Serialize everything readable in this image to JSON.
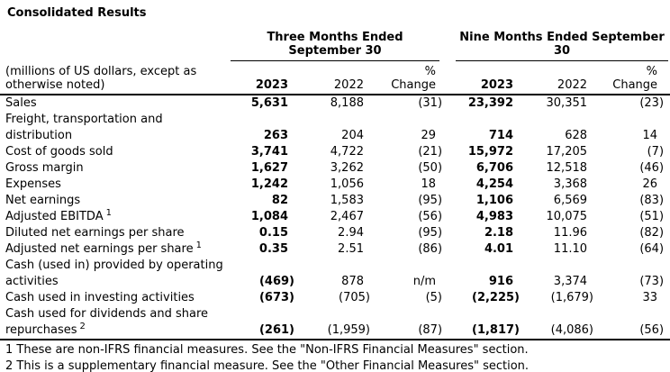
{
  "title": "Consolidated Results",
  "colors": {
    "text": "#000000",
    "background": "#ffffff",
    "rule": "#000000"
  },
  "table": {
    "unit_note": "(millions of US dollars, except as\notherwise noted)",
    "groups": [
      {
        "label": "Three Months Ended\nSeptember 30"
      },
      {
        "label": "Nine Months Ended September\n30"
      }
    ],
    "columns": {
      "y2023": "2023",
      "y2022": "2022",
      "pct_change": "%\nChange"
    },
    "rows": [
      {
        "label": "Sales",
        "sup": "",
        "values": [
          "5,631",
          "8,188",
          "(31)",
          "23,392",
          "30,351",
          "(23)"
        ]
      },
      {
        "label": "Freight, transportation and\ndistribution",
        "sup": "",
        "values": [
          "263",
          "204",
          "29",
          "714",
          "628",
          "14"
        ]
      },
      {
        "label": "Cost of goods sold",
        "sup": "",
        "values": [
          "3,741",
          "4,722",
          "(21)",
          "15,972",
          "17,205",
          "(7)"
        ]
      },
      {
        "label": "Gross margin",
        "sup": "",
        "values": [
          "1,627",
          "3,262",
          "(50)",
          "6,706",
          "12,518",
          "(46)"
        ]
      },
      {
        "label": "Expenses",
        "sup": "",
        "values": [
          "1,242",
          "1,056",
          "18",
          "4,254",
          "3,368",
          "26"
        ]
      },
      {
        "label": "Net earnings",
        "sup": "",
        "values": [
          "82",
          "1,583",
          "(95)",
          "1,106",
          "6,569",
          "(83)"
        ]
      },
      {
        "label": "Adjusted EBITDA",
        "sup": "1",
        "values": [
          "1,084",
          "2,467",
          "(56)",
          "4,983",
          "10,075",
          "(51)"
        ]
      },
      {
        "label": "Diluted net earnings per share",
        "sup": "",
        "values": [
          "0.15",
          "2.94",
          "(95)",
          "2.18",
          "11.96",
          "(82)"
        ]
      },
      {
        "label": "Adjusted net earnings per share",
        "sup": "1",
        "values": [
          "0.35",
          "2.51",
          "(86)",
          "4.01",
          "11.10",
          "(64)"
        ]
      },
      {
        "label": "Cash (used in) provided by operating\nactivities",
        "sup": "",
        "values": [
          "(469)",
          "878",
          "n/m",
          "916",
          "3,374",
          "(73)"
        ]
      },
      {
        "label": "Cash used in investing activities",
        "sup": "",
        "values": [
          "(673)",
          "(705)",
          "(5)",
          "(2,225)",
          "(1,679)",
          "33"
        ]
      },
      {
        "label": "Cash used for dividends and share\nrepurchases",
        "sup": "2",
        "values": [
          "(261)",
          "(1,959)",
          "(87)",
          "(1,817)",
          "(4,086)",
          "(56)"
        ]
      }
    ],
    "footnotes": [
      "1 These are non-IFRS financial measures. See the \"Non-IFRS Financial Measures\" section.",
      "2 This is a supplementary financial measure. See the \"Other Financial Measures\" section."
    ]
  }
}
